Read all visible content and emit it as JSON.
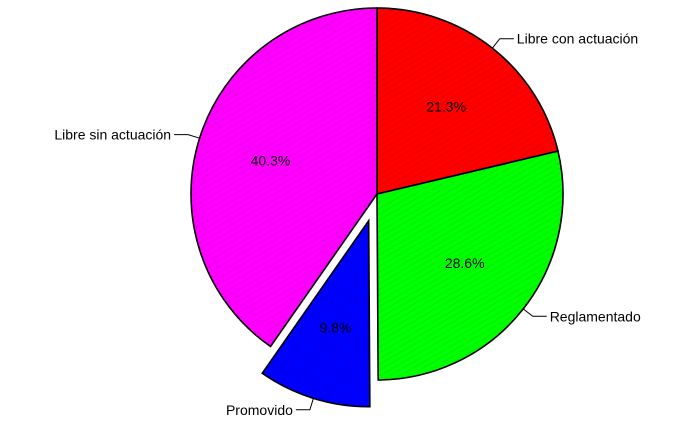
{
  "chart_data": {
    "type": "pie",
    "title": "",
    "start": "top",
    "direction": "clockwise",
    "slices": [
      {
        "label": "Libre con actuación",
        "value": 21.3,
        "value_label": "21.3%",
        "color": "#ff0000",
        "exploded": false,
        "label_side": "right"
      },
      {
        "label": "Reglamentado",
        "value": 28.6,
        "value_label": "28.6%",
        "color": "#00ff00",
        "exploded": false,
        "label_side": "right"
      },
      {
        "label": "Promovido",
        "value": 9.8,
        "value_label": "9.8%",
        "color": "#0000ff",
        "exploded": true,
        "label_side": "left"
      },
      {
        "label": "Libre sin actuación",
        "value": 40.3,
        "value_label": "40.3%",
        "color": "#ff00ff",
        "exploded": false,
        "label_side": "left"
      }
    ]
  }
}
